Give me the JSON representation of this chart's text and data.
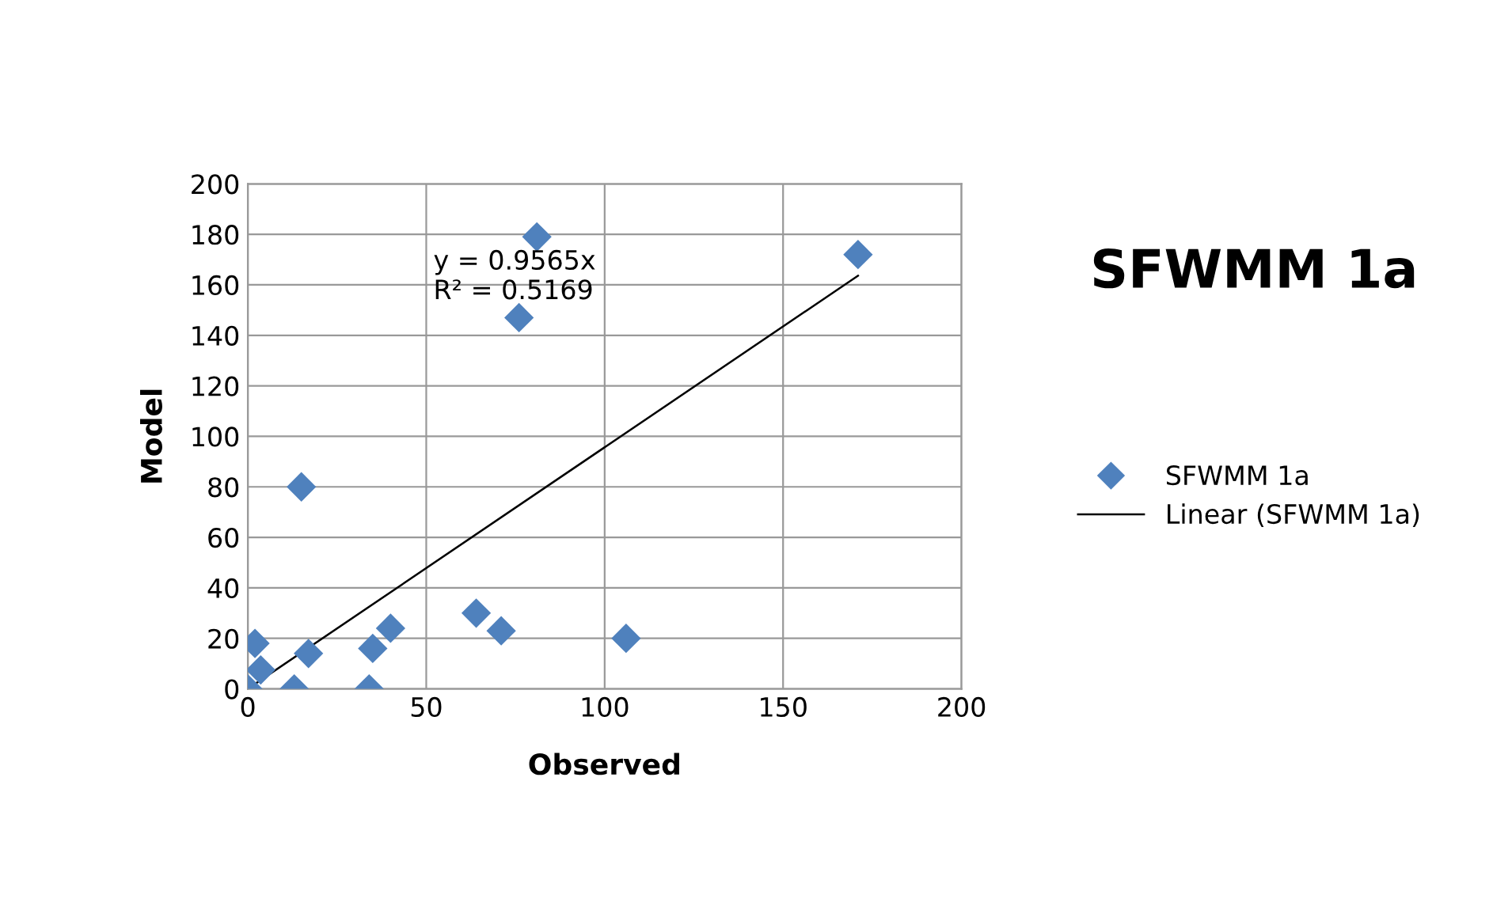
{
  "chart_data": {
    "type": "scatter",
    "title": "SFWMM 1a",
    "xlabel": "Observed",
    "ylabel": "Model",
    "annotations": [
      "y = 0.9565x\nR² = 0.5169"
    ],
    "series": [
      {
        "name": "SFWMM 1a",
        "color": "#4f81bd",
        "marker": "diamond",
        "x": [
          0,
          2,
          3.6,
          13,
          17,
          34,
          35,
          40,
          64,
          71,
          76,
          81,
          106,
          15,
          171
        ],
        "values": [
          0,
          18,
          7.5,
          0,
          14,
          0,
          16,
          24,
          30,
          23,
          147,
          179,
          20,
          80,
          172
        ]
      },
      {
        "name": "Linear (SFWMM 1a)",
        "type": "line",
        "color": "#000000",
        "marker": "none",
        "line_style": "solid",
        "x": [
          0,
          171
        ],
        "values": [
          0,
          163.6
        ]
      }
    ],
    "xlim": [
      0,
      200
    ],
    "ylim": [
      0,
      200
    ],
    "xticks": [
      0,
      50,
      100,
      150,
      200
    ],
    "yticks": [
      0,
      20,
      40,
      60,
      80,
      100,
      120,
      140,
      160,
      180,
      200
    ],
    "grid": true,
    "legend": "right"
  }
}
